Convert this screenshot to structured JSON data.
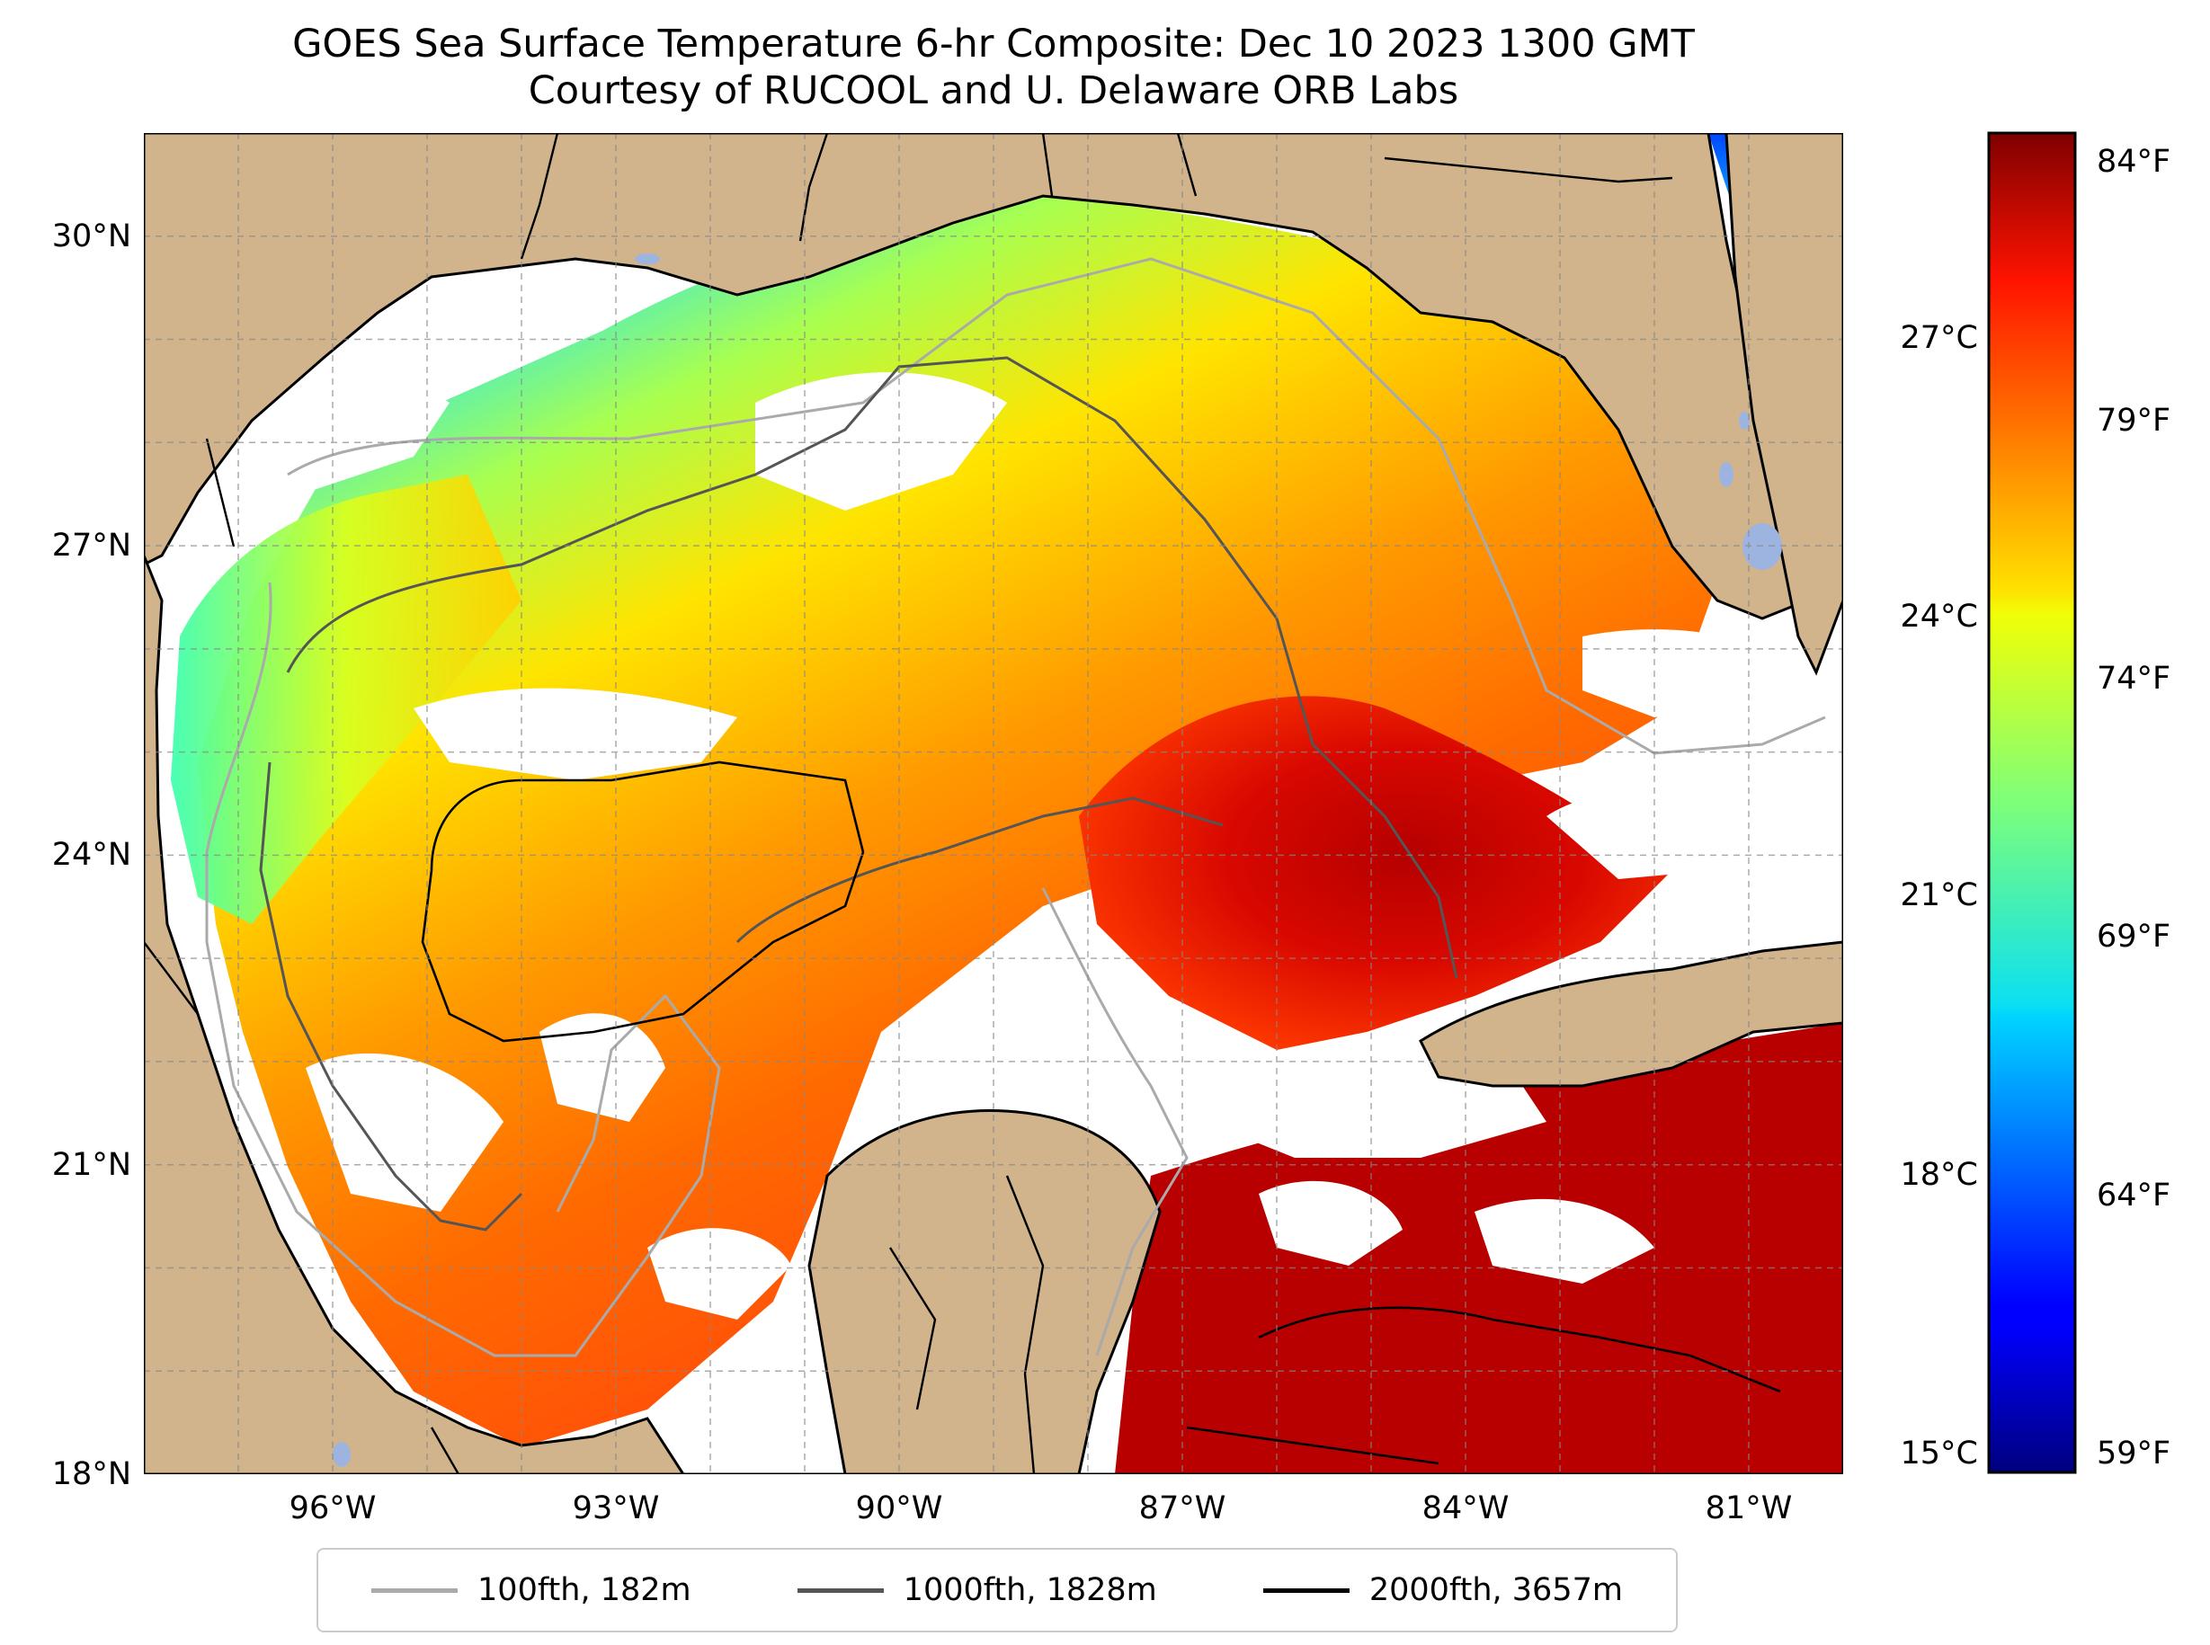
{
  "title": {
    "line1": "GOES Sea Surface Temperature 6-hr Composite: Dec 10 2023 1300 GMT",
    "line2": "Courtesy of RUCOOL and U. Delaware ORB Labs"
  },
  "map": {
    "lon_range": [
      -98,
      -80
    ],
    "lat_range": [
      18,
      31
    ],
    "land_color": "#d2b48c",
    "cloud_color": "#ffffff",
    "lake_color": "#9db4e0",
    "lat_ticks": [
      {
        "value": 30,
        "label": "30°N"
      },
      {
        "value": 27,
        "label": "27°N"
      },
      {
        "value": 24,
        "label": "24°N"
      },
      {
        "value": 21,
        "label": "21°N"
      },
      {
        "value": 18,
        "label": "18°N"
      }
    ],
    "lon_ticks": [
      {
        "value": -96,
        "label": "96°W"
      },
      {
        "value": -93,
        "label": "93°W"
      },
      {
        "value": -90,
        "label": "90°W"
      },
      {
        "value": -87,
        "label": "87°W"
      },
      {
        "value": -84,
        "label": "84°W"
      },
      {
        "value": -81,
        "label": "81°W"
      }
    ],
    "gridlines": true
  },
  "colorbar": {
    "range_c": [
      14.8,
      29.2
    ],
    "celsius_ticks": [
      {
        "value": 27,
        "label": "27°C"
      },
      {
        "value": 24,
        "label": "24°C"
      },
      {
        "value": 21,
        "label": "21°C"
      },
      {
        "value": 18,
        "label": "18°C"
      },
      {
        "value": 15,
        "label": "15°C"
      }
    ],
    "fahrenheit_ticks": [
      {
        "value": 84,
        "label": "84°F"
      },
      {
        "value": 79,
        "label": "79°F"
      },
      {
        "value": 74,
        "label": "74°F"
      },
      {
        "value": 69,
        "label": "69°F"
      },
      {
        "value": 64,
        "label": "64°F"
      },
      {
        "value": 59,
        "label": "59°F"
      }
    ],
    "colormap": "jet"
  },
  "legend": {
    "items": [
      {
        "label": "100fth, 182m",
        "color": "#aaaaaa"
      },
      {
        "label": "1000fth, 1828m",
        "color": "#555555"
      },
      {
        "label": "2000fth, 3657m",
        "color": "#000000"
      }
    ]
  }
}
